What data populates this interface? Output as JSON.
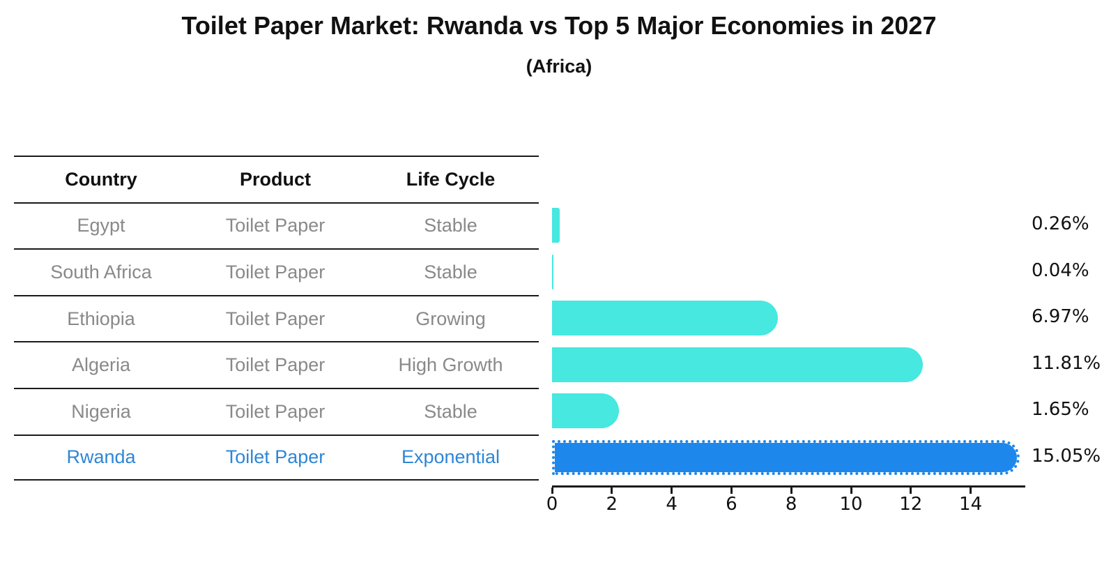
{
  "title": "Toilet Paper Market: Rwanda vs Top 5 Major Economies in 2027",
  "subtitle": "(Africa)",
  "table": {
    "headers": [
      "Country",
      "Product",
      "Life Cycle"
    ],
    "rows": [
      {
        "country": "Egypt",
        "product": "Toilet Paper",
        "life_cycle": "Stable",
        "highlighted": false
      },
      {
        "country": "South Africa",
        "product": "Toilet Paper",
        "life_cycle": "Stable",
        "highlighted": false
      },
      {
        "country": "Ethiopia",
        "product": "Toilet Paper",
        "life_cycle": "Growing",
        "highlighted": false
      },
      {
        "country": "Algeria",
        "product": "Toilet Paper",
        "life_cycle": "High Growth",
        "highlighted": false
      },
      {
        "country": "Nigeria",
        "product": "Toilet Paper",
        "life_cycle": "Stable",
        "highlighted": false
      },
      {
        "country": "Rwanda",
        "product": "Toilet Paper",
        "life_cycle": "Exponential",
        "highlighted": true
      }
    ]
  },
  "chart_data": {
    "type": "bar",
    "orientation": "horizontal",
    "title": "Toilet Paper Market: Rwanda vs Top 5 Major Economies in 2027",
    "subtitle": "(Africa)",
    "categories": [
      "Egypt",
      "South Africa",
      "Ethiopia",
      "Algeria",
      "Nigeria",
      "Rwanda"
    ],
    "values": [
      0.26,
      0.04,
      6.97,
      11.81,
      1.65,
      15.05
    ],
    "value_labels": [
      "0.26%",
      "0.04%",
      "6.97%",
      "11.81%",
      "1.65%",
      "15.05%"
    ],
    "x_ticks": [
      0,
      2,
      4,
      6,
      8,
      10,
      12,
      14
    ],
    "x_tick_labels": [
      "0",
      "2",
      "4",
      "6",
      "8",
      "10",
      "12",
      "14"
    ],
    "xlim": [
      0,
      15.8
    ],
    "xlabel": "",
    "ylabel": "",
    "grid": false,
    "legend": "none",
    "bar_color": "#46e8df",
    "highlight_color": "#1e87eb",
    "highlight_index": 5,
    "highlight_border_style": "dotted"
  },
  "colors": {
    "bar_turquoise": "#46e8df",
    "bar_blue": "#1e87eb",
    "table_text_gray": "#898989",
    "highlight_text_blue": "#2e86d6",
    "line_black": "#1a1a1a"
  }
}
